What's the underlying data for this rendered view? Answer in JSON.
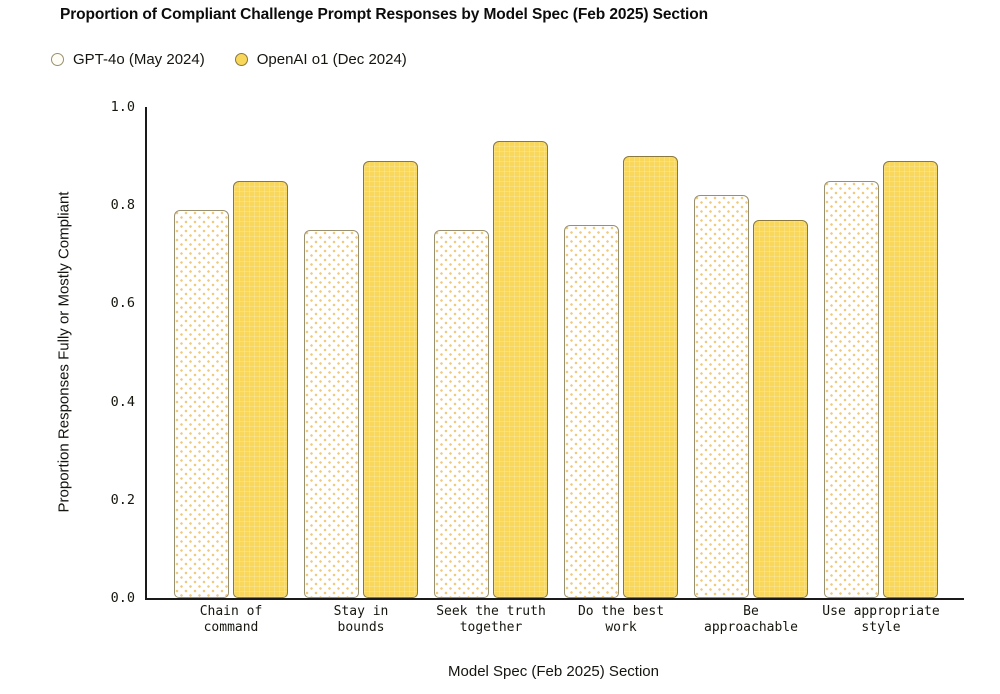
{
  "title": "Proportion of Compliant Challenge Prompt Responses by Model Spec (Feb 2025) Section",
  "legend": [
    {
      "label": "GPT-4o (May 2024)",
      "style": "dotted"
    },
    {
      "label": "OpenAI o1 (Dec 2024)",
      "style": "solid"
    }
  ],
  "colors": {
    "solid_fill": "#F9D75B",
    "solid_border": "#8A783D",
    "dotted_dot": "#EFCB80",
    "dotted_border": "#99906F",
    "axis": "#1A1A1A"
  },
  "chart_data": {
    "type": "bar",
    "title": "Proportion of Compliant Challenge Prompt Responses by Model Spec (Feb 2025) Section",
    "categories": [
      "Chain of command",
      "Stay in bounds",
      "Seek the truth together",
      "Do the best work",
      "Be approachable",
      "Use appropriate style"
    ],
    "category_lines": [
      "Chain of\ncommand",
      "Stay in\nbounds",
      "Seek the truth\ntogether",
      "Do the best\nwork",
      "Be\napproachable",
      "Use appropriate\nstyle"
    ],
    "series": [
      {
        "name": "GPT-4o (May 2024)",
        "style": "dotted",
        "values": [
          0.79,
          0.75,
          0.75,
          0.76,
          0.82,
          0.85
        ]
      },
      {
        "name": "OpenAI o1 (Dec 2024)",
        "style": "solid",
        "values": [
          0.85,
          0.89,
          0.93,
          0.9,
          0.77,
          0.89
        ]
      }
    ],
    "xlabel": "Model Spec (Feb 2025) Section",
    "ylabel": "Proportion Responses Fully or Mostly Compliant",
    "ylim": [
      0,
      1
    ],
    "yticks": [
      {
        "label": "0.0",
        "value": 0.0
      },
      {
        "label": "0.2",
        "value": 0.2
      },
      {
        "label": "0.4",
        "value": 0.4
      },
      {
        "label": "0.6",
        "value": 0.6
      },
      {
        "label": "0.8",
        "value": 0.8
      },
      {
        "label": "1.0",
        "value": 1.0
      }
    ],
    "grid": false,
    "legend_position": "top-left"
  }
}
